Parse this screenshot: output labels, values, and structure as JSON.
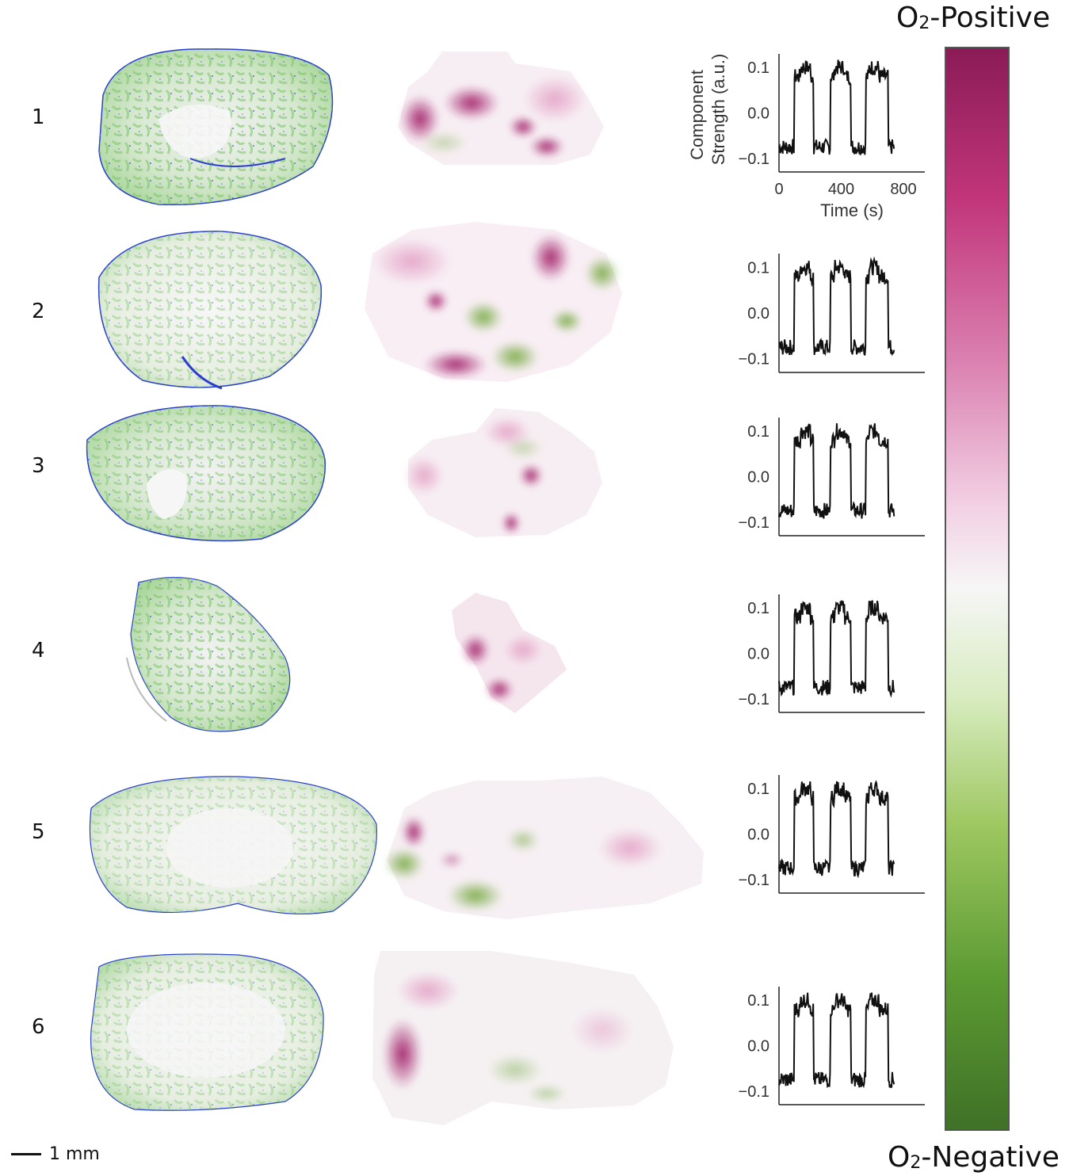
{
  "rows": [
    {
      "label": "1"
    },
    {
      "label": "2"
    },
    {
      "label": "3"
    },
    {
      "label": "4"
    },
    {
      "label": "5"
    },
    {
      "label": "6"
    }
  ],
  "colorbar": {
    "top_label_main": "O",
    "top_label_sub": "2",
    "top_label_rest": "-Positive",
    "bottom_label_main": "O",
    "bottom_label_sub": "2",
    "bottom_label_rest": "-Negative",
    "colors": [
      "#8e1a5a",
      "#c2357b",
      "#dc86b4",
      "#f2cfe3",
      "#f6f6f6",
      "#d8ecc0",
      "#9dc760",
      "#5c9a32",
      "#3f7127"
    ]
  },
  "scale_bar": {
    "label": "1 mm"
  },
  "chart_data": {
    "type": "line",
    "xlabel": "Time (s)",
    "ylabel_line1": "Component",
    "ylabel_line2": "Strength (a.u.)",
    "x_ticks": [
      "0",
      "400",
      "800"
    ],
    "y_ticks": [
      "0.1",
      "0.0",
      "−0.1"
    ],
    "xlim": [
      0,
      800
    ],
    "ylim": [
      -0.13,
      0.13
    ],
    "series_style": "three on/off blocks: ~0.1 during ~100–220 s, ~330–460 s, ~560–700 s; ~−0.07 otherwise"
  }
}
